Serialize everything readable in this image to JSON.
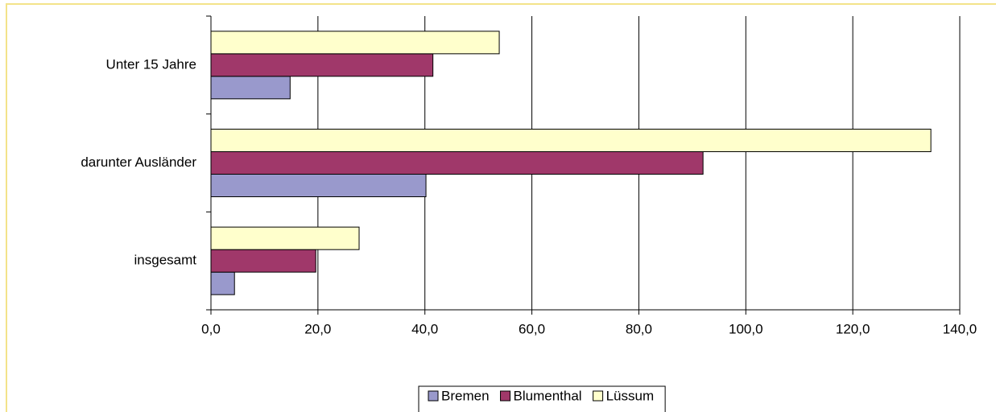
{
  "chart_data": {
    "type": "bar",
    "orientation": "horizontal",
    "categories": [
      "Unter 15 Jahre",
      "darunter Ausländer",
      "insgesamt"
    ],
    "series": [
      {
        "name": "Bremen",
        "color": "#9999cc",
        "values": [
          14.8,
          40.2,
          4.4
        ]
      },
      {
        "name": "Blumenthal",
        "color": "#a0386a",
        "values": [
          41.5,
          92.0,
          19.6
        ]
      },
      {
        "name": "Lüssum",
        "color": "#ffffcc",
        "values": [
          53.9,
          134.6,
          27.7
        ]
      }
    ],
    "xlim": [
      0,
      140
    ],
    "xticks": [
      {
        "value": 0,
        "label": "0,0"
      },
      {
        "value": 20,
        "label": "20,0"
      },
      {
        "value": 40,
        "label": "40,0"
      },
      {
        "value": 60,
        "label": "60,0"
      },
      {
        "value": 80,
        "label": "80,0"
      },
      {
        "value": 100,
        "label": "100,0"
      },
      {
        "value": 120,
        "label": "120,0"
      },
      {
        "value": 140,
        "label": "140,0"
      }
    ],
    "grid": true,
    "legend": "bottom"
  }
}
